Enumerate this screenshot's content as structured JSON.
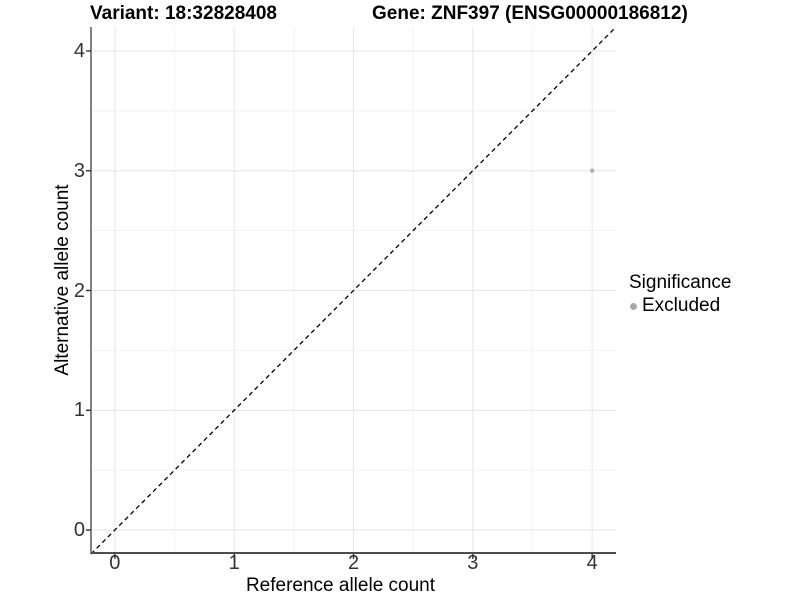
{
  "chart_data": {
    "type": "scatter",
    "titles": {
      "left": "Variant: 18:32828408",
      "right": "Gene: ZNF397 (ENSG00000186812)"
    },
    "xlabel": "Reference allele count",
    "ylabel": "Alternative allele count",
    "xlim": [
      -0.2,
      4.2
    ],
    "ylim": [
      -0.2,
      4.2
    ],
    "x_ticks": [
      0,
      1,
      2,
      3,
      4
    ],
    "y_ticks": [
      0,
      1,
      2,
      3,
      4
    ],
    "x_minor": [
      0.5,
      1.5,
      2.5,
      3.5
    ],
    "y_minor": [
      0.5,
      1.5,
      2.5,
      3.5
    ],
    "grid": "major+minor",
    "reference_line": {
      "type": "identity",
      "style": "dashed",
      "color": "#000000",
      "from": [
        -0.2,
        -0.2
      ],
      "to": [
        4.2,
        4.2
      ]
    },
    "series": [
      {
        "name": "Excluded",
        "color": "#b2b2b2",
        "point_radius": 2.2,
        "points": [
          [
            4,
            3
          ]
        ]
      }
    ],
    "legend": {
      "position": "right",
      "title": "Significance",
      "items": [
        {
          "label": "Excluded",
          "color": "#a9a9a9"
        }
      ]
    },
    "colors": {
      "background": "#ffffff",
      "grid_major": "#e6e6e6",
      "grid_minor": "#f2f2f2",
      "axis_line": "#4d4d4d",
      "tick": "#333333"
    }
  }
}
